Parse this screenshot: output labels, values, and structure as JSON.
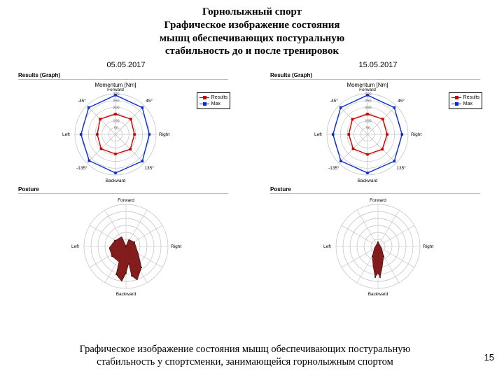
{
  "title_lines": [
    "Горнолыжный спорт",
    "Графическое изображение состояния",
    "мышц обеспечивающих постуральную",
    "стабильность до и после тренировок"
  ],
  "caption_lines": [
    "Графическое изображение состояния мышц обеспечивающих постуральную",
    "стабильность у спортсменки, занимающейся горнолыжным спортом"
  ],
  "page_number": "15",
  "panels": {
    "results_label": "Results (Graph)",
    "posture_label": "Posture",
    "momentum_title": "Momentum [Nm]",
    "dir_labels": {
      "fwd": "Forward",
      "bwd": "Backward",
      "left": "Left",
      "right": "Right"
    },
    "angle_labels": [
      "-45°",
      "-90°",
      "-135°",
      "45°",
      "90°",
      "135°"
    ],
    "legend": {
      "results": "Results",
      "max": "Max"
    }
  },
  "colors": {
    "grid": "#bfbfbf",
    "axis_dark": "#808080",
    "results": "#cc0000",
    "max": "#0b2fcf",
    "posture_blob": "#7a0a0a",
    "bg": "#ffffff"
  },
  "radar": {
    "rings": [
      50,
      100,
      150,
      200,
      250,
      300
    ],
    "angles_deg": [
      90,
      45,
      0,
      315,
      270,
      225,
      180,
      135
    ],
    "left": {
      "date": "05.05.2017",
      "max": [
        290,
        280,
        250,
        280,
        285,
        275,
        255,
        280
      ],
      "results": [
        150,
        160,
        140,
        155,
        145,
        150,
        135,
        160
      ]
    },
    "right": {
      "date": "15.05.2017",
      "max": [
        290,
        280,
        255,
        280,
        285,
        278,
        255,
        280
      ],
      "results": [
        150,
        160,
        145,
        155,
        148,
        150,
        138,
        158
      ]
    }
  },
  "posture": {
    "left": {
      "blob": [
        [
          0,
          0
        ],
        [
          4,
          -10
        ],
        [
          12,
          -6
        ],
        [
          18,
          12
        ],
        [
          22,
          30
        ],
        [
          16,
          48
        ],
        [
          8,
          42
        ],
        [
          4,
          24
        ],
        [
          0,
          38
        ],
        [
          -6,
          50
        ],
        [
          -14,
          40
        ],
        [
          -10,
          22
        ],
        [
          -20,
          14
        ],
        [
          -24,
          2
        ],
        [
          -16,
          -8
        ],
        [
          -6,
          -14
        ],
        [
          0,
          0
        ]
      ]
    },
    "right": {
      "blob": [
        [
          0,
          -6
        ],
        [
          5,
          2
        ],
        [
          8,
          14
        ],
        [
          6,
          30
        ],
        [
          3,
          44
        ],
        [
          0,
          38
        ],
        [
          -4,
          44
        ],
        [
          -7,
          28
        ],
        [
          -8,
          14
        ],
        [
          -5,
          2
        ],
        [
          0,
          -6
        ]
      ]
    }
  }
}
